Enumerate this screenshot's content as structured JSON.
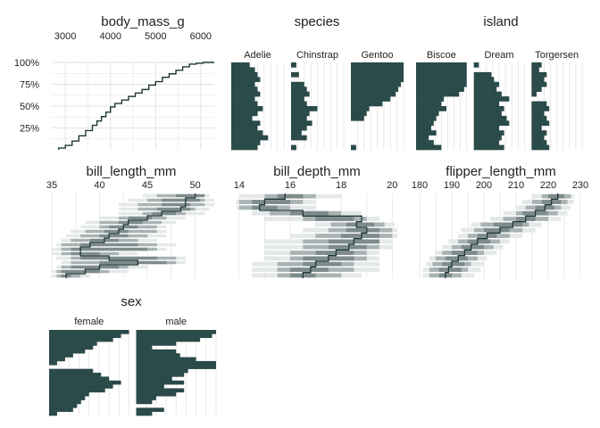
{
  "chart_data": {
    "type": "table",
    "colors": {
      "bar": "#2b4a4a",
      "grid": "#e3e3e3",
      "band_light": "#e4e8e8",
      "band_mid": "#a9b3b3",
      "band_dark": "#7e8b8b",
      "line": "#1f3737"
    },
    "panels": [
      {
        "id": "body_mass_g",
        "title": "body_mass_g",
        "kind": "ecdf",
        "x_ticks": [
          "3000",
          "4000",
          "5000",
          "6000"
        ],
        "y_ticks": [
          "25%",
          "50%",
          "75%",
          "100%"
        ],
        "xlim": [
          2700,
          6300
        ],
        "ecdf_x": [
          2850,
          3000,
          3150,
          3300,
          3450,
          3600,
          3700,
          3800,
          3900,
          4000,
          4100,
          4250,
          4400,
          4550,
          4700,
          4850,
          5000,
          5150,
          5300,
          5450,
          5600,
          5750,
          5900,
          6050
        ],
        "ecdf_y": [
          0.02,
          0.05,
          0.1,
          0.16,
          0.22,
          0.28,
          0.33,
          0.38,
          0.43,
          0.49,
          0.53,
          0.57,
          0.61,
          0.65,
          0.69,
          0.74,
          0.78,
          0.83,
          0.87,
          0.91,
          0.95,
          0.98,
          0.99,
          1.0
        ]
      },
      {
        "id": "species",
        "title": "species",
        "kind": "facet_bars",
        "facets": [
          {
            "label": "Adelie",
            "values": [
              0.35,
              0.45,
              0.5,
              0.55,
              0.45,
              0.5,
              0.55,
              0.45,
              0.5,
              0.6,
              0.5,
              0.4,
              0.55,
              0.5,
              0.6,
              0.7,
              0.55,
              0.5
            ]
          },
          {
            "label": "Chinstrap",
            "values": [
              0.1,
              0,
              0.15,
              0,
              0.25,
              0.3,
              0.35,
              0.25,
              0.3,
              0.5,
              0.35,
              0.3,
              0.4,
              0.3,
              0.2,
              0.3,
              0,
              0.1
            ]
          },
          {
            "label": "Gentoo",
            "values": [
              1,
              1,
              1,
              1,
              0.95,
              0.9,
              0.85,
              0.75,
              0.6,
              0.35,
              0.3,
              0.25,
              0,
              0,
              0,
              0,
              0,
              0.1
            ]
          }
        ]
      },
      {
        "id": "island",
        "title": "island",
        "kind": "facet_bars",
        "facets": [
          {
            "label": "Biscoe",
            "values": [
              1,
              1,
              1,
              1,
              1,
              0.95,
              0.85,
              0.55,
              0.5,
              0.6,
              0.45,
              0.4,
              0.35,
              0.3,
              0.4,
              0.25,
              0.35,
              0.5
            ]
          },
          {
            "label": "Dream",
            "values": [
              0.1,
              0,
              0.35,
              0.4,
              0.5,
              0.45,
              0.55,
              0.7,
              0.5,
              0.6,
              0.55,
              0.65,
              0.7,
              0.5,
              0.6,
              0.55,
              0.5,
              0.6
            ]
          },
          {
            "label": "Torgersen",
            "values": [
              0.2,
              0.15,
              0.3,
              0.25,
              0.3,
              0.2,
              0.1,
              0,
              0.3,
              0.35,
              0.25,
              0.3,
              0.35,
              0.2,
              0.3,
              0.25,
              0.3,
              0.35
            ]
          }
        ]
      },
      {
        "id": "bill_length_mm",
        "title": "bill_length_mm",
        "kind": "quantile_bands",
        "x_ticks": [
          "35",
          "40",
          "45",
          "50"
        ],
        "xlim": [
          35,
          52
        ],
        "rows": [
          [
            48,
            51,
            46,
            50.5,
            44.5,
            51.5
          ],
          [
            46.5,
            50.5,
            45,
            51,
            43,
            52
          ],
          [
            46.5,
            49.5,
            44,
            51,
            42,
            52
          ],
          [
            46,
            49.5,
            44,
            50,
            42,
            51.5
          ],
          [
            45.5,
            48,
            44.5,
            49,
            42,
            51
          ],
          [
            43,
            45.5,
            42,
            47,
            40,
            49
          ],
          [
            42,
            44.5,
            40,
            46.5,
            38.5,
            48
          ],
          [
            41,
            44,
            40,
            46,
            38,
            47
          ],
          [
            40.5,
            43,
            38.5,
            46,
            37,
            47
          ],
          [
            40,
            43,
            38,
            45,
            36.5,
            47
          ],
          [
            39,
            42,
            37,
            44,
            36,
            46
          ],
          [
            38,
            44,
            36,
            46,
            35.5,
            48
          ],
          [
            37,
            45,
            36,
            46,
            35,
            47
          ],
          [
            37,
            40,
            36,
            42,
            35,
            44
          ],
          [
            38,
            46,
            37,
            48,
            35.5,
            49
          ],
          [
            40,
            47,
            37,
            48,
            36,
            49
          ],
          [
            37,
            42,
            36,
            43,
            35.5,
            45
          ],
          [
            36,
            40,
            35.5,
            41,
            35,
            43
          ],
          [
            36,
            37,
            35.5,
            38,
            35,
            39
          ]
        ],
        "median": [
          50,
          49,
          49,
          48.5,
          46.5,
          45,
          43,
          42.5,
          42,
          41,
          40.5,
          39,
          38,
          38,
          41,
          44,
          40,
          38.5,
          36.5
        ]
      },
      {
        "id": "bill_depth_mm",
        "title": "bill_depth_mm",
        "kind": "quantile_bands",
        "x_ticks": [
          "14",
          "16",
          "18",
          "20"
        ],
        "xlim": [
          13.9,
          20.2
        ],
        "rows": [
          [
            15.5,
            16.5,
            15,
            17,
            14,
            18
          ],
          [
            14.5,
            16,
            14,
            16.5,
            13.9,
            17
          ],
          [
            14.5,
            15.5,
            14,
            16,
            13.9,
            17
          ],
          [
            16,
            17.5,
            15.2,
            18,
            14.5,
            18.8
          ],
          [
            17,
            18.5,
            16.5,
            19,
            15,
            19.5
          ],
          [
            18.2,
            19.3,
            17.6,
            19.7,
            17,
            20.1
          ],
          [
            18.2,
            19.5,
            17.5,
            20,
            16.5,
            20.2
          ],
          [
            18,
            19.5,
            17,
            20,
            16,
            20.2
          ],
          [
            17.5,
            19.5,
            16.5,
            19.5,
            15,
            20
          ],
          [
            17.5,
            19,
            16.5,
            19.5,
            15,
            20
          ],
          [
            17,
            18.5,
            16,
            19,
            15,
            19.5
          ],
          [
            16.5,
            18.5,
            16,
            19,
            15,
            19.5
          ],
          [
            16.5,
            18,
            15.5,
            18.5,
            14.5,
            19.5
          ],
          [
            16,
            17.5,
            15.5,
            18.5,
            14.5,
            19.5
          ],
          [
            16,
            17,
            15.5,
            18,
            14.5,
            18.8
          ]
        ],
        "median": [
          15.8,
          15,
          14.8,
          16.5,
          18.8,
          18.6,
          19,
          18.8,
          18.5,
          18.3,
          17.8,
          17.5,
          17,
          16.8,
          16.5
        ]
      },
      {
        "id": "flipper_length_mm",
        "title": "flipper_length_mm",
        "kind": "quantile_bands",
        "x_ticks": [
          "180",
          "190",
          "200",
          "210",
          "220",
          "230"
        ],
        "xlim": [
          180,
          230
        ],
        "rows": [
          [
            220,
            225,
            218,
            227,
            215,
            228
          ],
          [
            218,
            224,
            215,
            226,
            212,
            228
          ],
          [
            216,
            222,
            213,
            224,
            210,
            227
          ],
          [
            212,
            220,
            210,
            223,
            206,
            226
          ],
          [
            210,
            216,
            206,
            220,
            202,
            224
          ],
          [
            203,
            212,
            199,
            214,
            196,
            218
          ],
          [
            200,
            208,
            197,
            212,
            193,
            216
          ],
          [
            198,
            204,
            195,
            208,
            192,
            212
          ],
          [
            195,
            202,
            192,
            205,
            189,
            208
          ],
          [
            193,
            200,
            190,
            203,
            187,
            206
          ],
          [
            190,
            198,
            187,
            200,
            185,
            204
          ],
          [
            188,
            195,
            185,
            198,
            183,
            201
          ],
          [
            187,
            194,
            184,
            196,
            182,
            200
          ],
          [
            186,
            193,
            183,
            195,
            181,
            199
          ],
          [
            186,
            190,
            183,
            193,
            181,
            197
          ]
        ],
        "median": [
          223,
          221,
          219,
          216,
          213,
          209,
          205,
          201,
          198,
          196,
          194,
          192,
          190,
          189,
          188
        ]
      },
      {
        "id": "sex",
        "title": "sex",
        "kind": "facet_bars",
        "facets": [
          {
            "label": "female",
            "values": [
              1,
              0.9,
              0.8,
              0.6,
              0.55,
              0.45,
              0.3,
              0.2,
              0.1,
              0,
              0.55,
              0.65,
              0.75,
              0.9,
              0.8,
              0.7,
              0.5,
              0.45,
              0.4,
              0.35,
              0.3,
              0.1
            ]
          },
          {
            "label": "male",
            "values": [
              1,
              0.95,
              0.8,
              0.5,
              0.2,
              0.5,
              0.55,
              0.75,
              1,
              1,
              0.65,
              0.6,
              0.45,
              0.6,
              0.35,
              0.6,
              0.5,
              0.25,
              0.2,
              0,
              0.35,
              0.2
            ]
          }
        ]
      }
    ]
  }
}
